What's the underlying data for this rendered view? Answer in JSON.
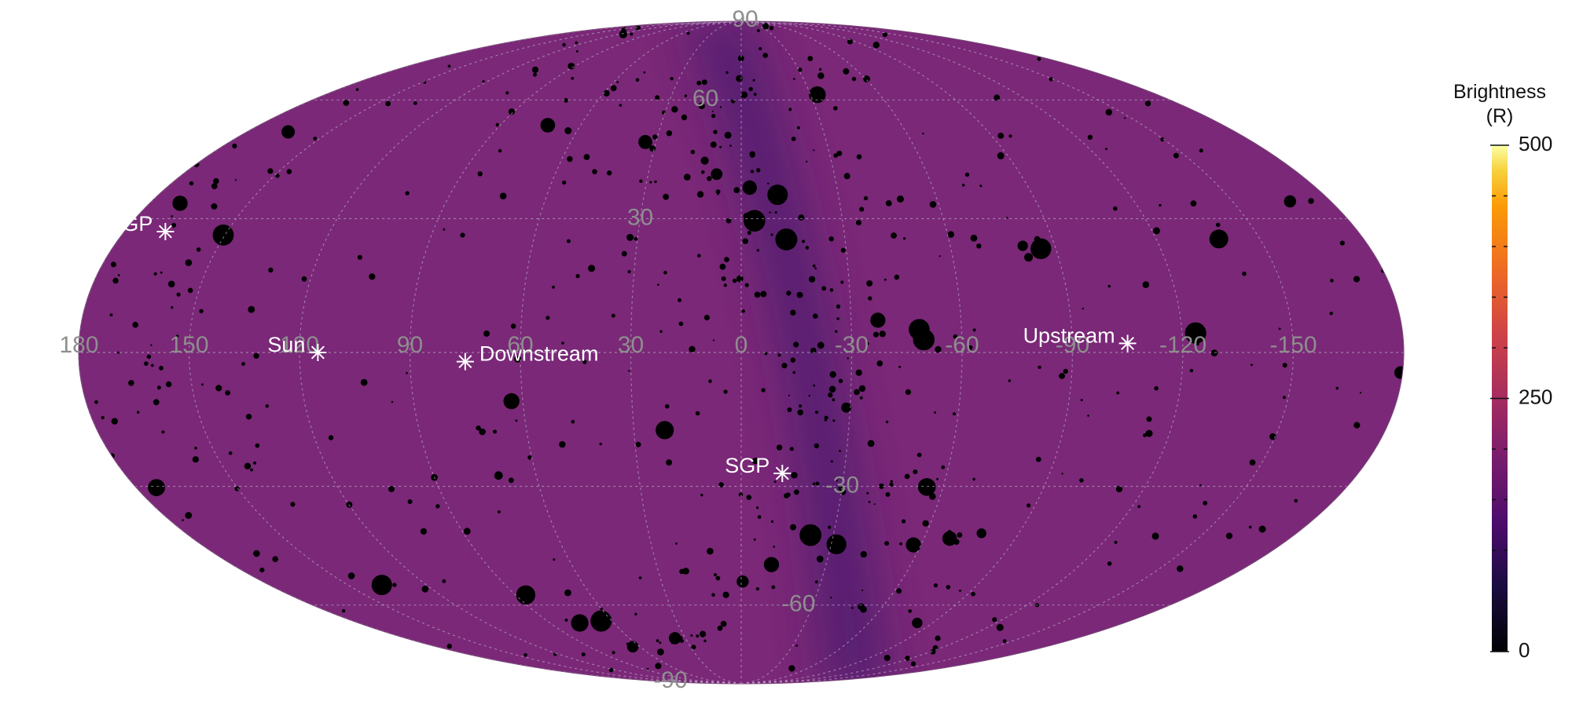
{
  "chart_data": {
    "type": "heatmap",
    "projection": "mollweide",
    "title": "",
    "colormap": "inferno",
    "colors": {
      "background": "#7a2877",
      "dark_region": "#4a1a6e",
      "bright_edge": "#f6b23a",
      "grid": "#c9c0d8",
      "tick_label": "#8e8e8e",
      "marker": "#ffffff"
    },
    "colorbar": {
      "title_line1": "Brightness",
      "title_line2": "(R)",
      "min": 0,
      "max": 500,
      "ticks": [
        {
          "value": 500,
          "label": "500"
        },
        {
          "value": 250,
          "label": "250"
        },
        {
          "value": 0,
          "label": "0"
        }
      ],
      "minor_ticks": [
        50,
        100,
        150,
        200,
        300,
        350,
        400,
        450
      ]
    },
    "longitude_labels": [
      {
        "lon": 90,
        "label": "90"
      },
      {
        "lon": 60,
        "label": "60"
      },
      {
        "lon": 30,
        "label": "30"
      },
      {
        "lon": 0,
        "label": "0"
      },
      {
        "lon": -30,
        "label": "-30"
      },
      {
        "lon": -60,
        "label": "-60"
      },
      {
        "lon": -90,
        "label": "-90"
      },
      {
        "lon": -120,
        "label": "-120"
      },
      {
        "lon": -150,
        "label": "-150"
      },
      {
        "lon": 180,
        "label": "180"
      },
      {
        "lon": 150,
        "label": "150"
      },
      {
        "lon": 120,
        "label": "120"
      }
    ],
    "latitude_labels": [
      {
        "lat": 90,
        "label": "90"
      },
      {
        "lat": 60,
        "label": "60"
      },
      {
        "lat": 30,
        "label": "30"
      },
      {
        "lat": -30,
        "label": "-30"
      },
      {
        "lat": -60,
        "label": "-60"
      },
      {
        "lat": -90,
        "label": "-90"
      }
    ],
    "markers": [
      {
        "name": "Downstream",
        "label": "Downstream",
        "lon": 75,
        "lat": -2
      },
      {
        "name": "Upstream",
        "label": "Upstream",
        "lon": -105,
        "lat": 2
      },
      {
        "name": "NGP",
        "label": "NGP",
        "lon": 168,
        "lat": 27
      },
      {
        "name": "SGP",
        "label": "SGP",
        "lon": -12,
        "lat": -27
      },
      {
        "name": "Sun",
        "label": "Sun",
        "lon": 115,
        "lat": 0
      }
    ]
  }
}
